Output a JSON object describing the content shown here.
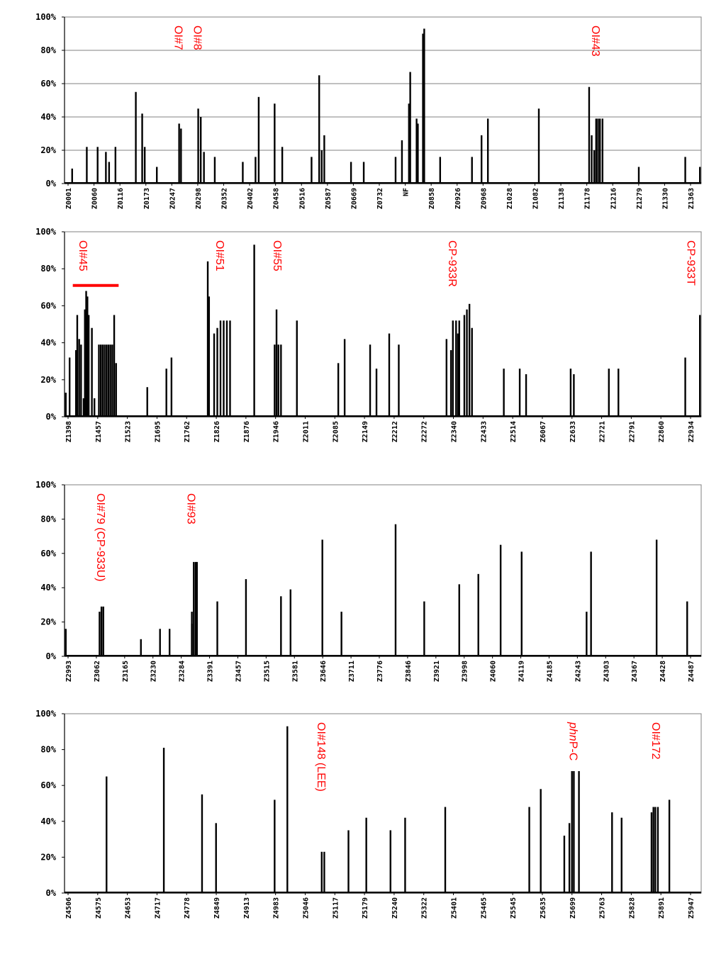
{
  "colors": {
    "bar": "#000000",
    "grid": "#808080",
    "annotation": "#ff0000",
    "background": "#ffffff"
  },
  "chart_data": [
    {
      "type": "bar",
      "ylim": [
        0,
        100
      ],
      "yticks": [
        "0%",
        "20%",
        "40%",
        "60%",
        "80%",
        "100%"
      ],
      "grid": true,
      "categories": [
        "Z0001",
        "Z0060",
        "Z0116",
        "Z0173",
        "Z0247",
        "Z0298",
        "Z0352",
        "Z0402",
        "Z0458",
        "Z0516",
        "Z0587",
        "Z0669",
        "Z0732",
        "NF",
        "Z0858",
        "Z0926",
        "Z0968",
        "Z1028",
        "Z1082",
        "Z1138",
        "Z1178",
        "Z1216",
        "Z1279",
        "Z1330",
        "Z1363"
      ],
      "bars": [
        [
          0.012,
          9
        ],
        [
          0.035,
          22
        ],
        [
          0.052,
          22
        ],
        [
          0.065,
          19
        ],
        [
          0.07,
          13
        ],
        [
          0.08,
          22
        ],
        [
          0.112,
          55
        ],
        [
          0.122,
          42
        ],
        [
          0.126,
          22
        ],
        [
          0.145,
          10
        ],
        [
          0.18,
          36
        ],
        [
          0.183,
          33
        ],
        [
          0.21,
          45
        ],
        [
          0.214,
          40
        ],
        [
          0.219,
          19
        ],
        [
          0.236,
          16
        ],
        [
          0.28,
          13
        ],
        [
          0.3,
          16
        ],
        [
          0.305,
          52
        ],
        [
          0.33,
          48
        ],
        [
          0.342,
          22
        ],
        [
          0.388,
          16
        ],
        [
          0.4,
          65
        ],
        [
          0.404,
          20
        ],
        [
          0.408,
          29
        ],
        [
          0.45,
          13
        ],
        [
          0.47,
          13
        ],
        [
          0.52,
          16
        ],
        [
          0.53,
          26
        ],
        [
          0.541,
          48
        ],
        [
          0.543,
          67
        ],
        [
          0.553,
          39
        ],
        [
          0.555,
          36
        ],
        [
          0.563,
          90
        ],
        [
          0.565,
          93
        ],
        [
          0.59,
          16
        ],
        [
          0.64,
          16
        ],
        [
          0.655,
          29
        ],
        [
          0.665,
          39
        ],
        [
          0.745,
          45
        ],
        [
          0.824,
          58
        ],
        [
          0.828,
          29
        ],
        [
          0.832,
          20
        ],
        [
          0.835,
          39
        ],
        [
          0.838,
          39
        ],
        [
          0.841,
          39
        ],
        [
          0.845,
          39
        ],
        [
          0.902,
          10
        ],
        [
          0.975,
          16
        ],
        [
          0.998,
          10
        ]
      ],
      "annotations": [
        {
          "text": "OI#7",
          "x": 0.18
        },
        {
          "text": "OI#8",
          "x": 0.21
        },
        {
          "text": "OI#43",
          "x": 0.835
        }
      ]
    },
    {
      "type": "bar",
      "ylim": [
        0,
        100
      ],
      "yticks": [
        "0%",
        "20%",
        "40%",
        "60%",
        "80%",
        "100%"
      ],
      "grid": false,
      "categories": [
        "Z1398",
        "Z1457",
        "Z1523",
        "Z1695",
        "Z1762",
        "Z1826",
        "Z1876",
        "Z1946",
        "Z2011",
        "Z2085",
        "Z2149",
        "Z2212",
        "Z2272",
        "Z2340",
        "Z2433",
        "Z2514",
        "Z6067",
        "Z2633",
        "Z2721",
        "Z2791",
        "Z2860",
        "Z2934"
      ],
      "bars": [
        [
          0.002,
          13
        ],
        [
          0.008,
          32
        ],
        [
          0.018,
          36
        ],
        [
          0.02,
          55
        ],
        [
          0.023,
          42
        ],
        [
          0.026,
          39
        ],
        [
          0.03,
          10
        ],
        [
          0.032,
          58
        ],
        [
          0.034,
          68
        ],
        [
          0.036,
          65
        ],
        [
          0.038,
          55
        ],
        [
          0.043,
          48
        ],
        [
          0.047,
          10
        ],
        [
          0.054,
          39
        ],
        [
          0.057,
          39
        ],
        [
          0.06,
          39
        ],
        [
          0.063,
          39
        ],
        [
          0.066,
          39
        ],
        [
          0.069,
          39
        ],
        [
          0.072,
          39
        ],
        [
          0.075,
          39
        ],
        [
          0.078,
          55
        ],
        [
          0.081,
          29
        ],
        [
          0.13,
          16
        ],
        [
          0.16,
          26
        ],
        [
          0.168,
          32
        ],
        [
          0.225,
          84
        ],
        [
          0.227,
          65
        ],
        [
          0.235,
          45
        ],
        [
          0.24,
          48
        ],
        [
          0.245,
          52
        ],
        [
          0.25,
          52
        ],
        [
          0.255,
          52
        ],
        [
          0.26,
          52
        ],
        [
          0.298,
          93
        ],
        [
          0.33,
          39
        ],
        [
          0.333,
          58
        ],
        [
          0.336,
          39
        ],
        [
          0.34,
          39
        ],
        [
          0.365,
          52
        ],
        [
          0.43,
          29
        ],
        [
          0.44,
          42
        ],
        [
          0.48,
          39
        ],
        [
          0.49,
          26
        ],
        [
          0.51,
          45
        ],
        [
          0.525,
          39
        ],
        [
          0.6,
          42
        ],
        [
          0.607,
          36
        ],
        [
          0.61,
          52
        ],
        [
          0.615,
          52
        ],
        [
          0.618,
          45
        ],
        [
          0.62,
          52
        ],
        [
          0.628,
          55
        ],
        [
          0.632,
          58
        ],
        [
          0.636,
          61
        ],
        [
          0.64,
          48
        ],
        [
          0.69,
          26
        ],
        [
          0.715,
          26
        ],
        [
          0.725,
          23
        ],
        [
          0.8,
          23
        ],
        [
          0.795,
          26
        ],
        [
          0.855,
          26
        ],
        [
          0.87,
          26
        ],
        [
          0.975,
          32
        ],
        [
          0.998,
          55
        ]
      ],
      "annotations": [
        {
          "text": "OI#45",
          "x": 0.03
        },
        {
          "text": "OI#51",
          "x": 0.245
        },
        {
          "text": "OI#55",
          "x": 0.335
        },
        {
          "text": "CP-933R",
          "x": 0.61
        },
        {
          "text": "CP-933T",
          "x": 0.985
        }
      ],
      "bracket": {
        "x0": 0.013,
        "x1": 0.085,
        "y": 71
      }
    },
    {
      "type": "bar",
      "ylim": [
        0,
        100
      ],
      "yticks": [
        "0%",
        "20%",
        "40%",
        "60%",
        "80%",
        "100%"
      ],
      "grid": false,
      "categories": [
        "Z2993",
        "Z3062",
        "Z3165",
        "Z3230",
        "Z3284",
        "Z3391",
        "Z3457",
        "Z3515",
        "Z3581",
        "Z3646",
        "Z3711",
        "Z3776",
        "Z3846",
        "Z3921",
        "Z3998",
        "Z4060",
        "Z4119",
        "Z4185",
        "Z4243",
        "Z4303",
        "Z4367",
        "Z4428",
        "Z4487"
      ],
      "bars": [
        [
          0.002,
          16
        ],
        [
          0.055,
          26
        ],
        [
          0.058,
          29
        ],
        [
          0.061,
          29
        ],
        [
          0.12,
          10
        ],
        [
          0.15,
          16
        ],
        [
          0.165,
          16
        ],
        [
          0.2,
          19
        ],
        [
          0.2,
          26
        ],
        [
          0.203,
          55
        ],
        [
          0.206,
          55
        ],
        [
          0.208,
          55
        ],
        [
          0.24,
          32
        ],
        [
          0.285,
          45
        ],
        [
          0.34,
          35
        ],
        [
          0.355,
          39
        ],
        [
          0.405,
          68
        ],
        [
          0.435,
          26
        ],
        [
          0.52,
          77
        ],
        [
          0.565,
          32
        ],
        [
          0.62,
          42
        ],
        [
          0.65,
          48
        ],
        [
          0.685,
          65
        ],
        [
          0.718,
          61
        ],
        [
          0.82,
          26
        ],
        [
          0.827,
          61
        ],
        [
          0.93,
          68
        ],
        [
          0.978,
          32
        ]
      ],
      "annotations": [
        {
          "text": "OI#79 (CP-933U)",
          "x": 0.058
        },
        {
          "text": "OI#93",
          "x": 0.2
        }
      ]
    },
    {
      "type": "bar",
      "ylim": [
        0,
        100
      ],
      "yticks": [
        "0%",
        "20%",
        "40%",
        "60%",
        "80%",
        "100%"
      ],
      "grid": false,
      "categories": [
        "Z4506",
        "Z4575",
        "Z4653",
        "Z4717",
        "Z4778",
        "Z4849",
        "Z4913",
        "Z4983",
        "Z5046",
        "Z5117",
        "Z5179",
        "Z5240",
        "Z5322",
        "Z5401",
        "Z5465",
        "Z5545",
        "Z5635",
        "Z5699",
        "Z5763",
        "Z5828",
        "Z5891",
        "Z5947"
      ],
      "bars": [
        [
          0.066,
          65
        ],
        [
          0.156,
          81
        ],
        [
          0.216,
          55
        ],
        [
          0.238,
          39
        ],
        [
          0.33,
          52
        ],
        [
          0.35,
          93
        ],
        [
          0.404,
          23
        ],
        [
          0.408,
          23
        ],
        [
          0.446,
          35
        ],
        [
          0.474,
          42
        ],
        [
          0.512,
          35
        ],
        [
          0.535,
          42
        ],
        [
          0.598,
          48
        ],
        [
          0.73,
          48
        ],
        [
          0.748,
          58
        ],
        [
          0.785,
          32
        ],
        [
          0.793,
          39
        ],
        [
          0.797,
          68
        ],
        [
          0.8,
          68
        ],
        [
          0.808,
          68
        ],
        [
          0.86,
          45
        ],
        [
          0.875,
          42
        ],
        [
          0.922,
          45
        ],
        [
          0.925,
          48
        ],
        [
          0.928,
          48
        ],
        [
          0.932,
          48
        ],
        [
          0.95,
          52
        ]
      ],
      "annotations": [
        {
          "text": "OI#148 (LEE)",
          "x": 0.404
        },
        {
          "text": "phnP-C",
          "x": 0.8,
          "italic_prefix": "phn"
        },
        {
          "text": "OI#172",
          "x": 0.93
        }
      ]
    }
  ]
}
